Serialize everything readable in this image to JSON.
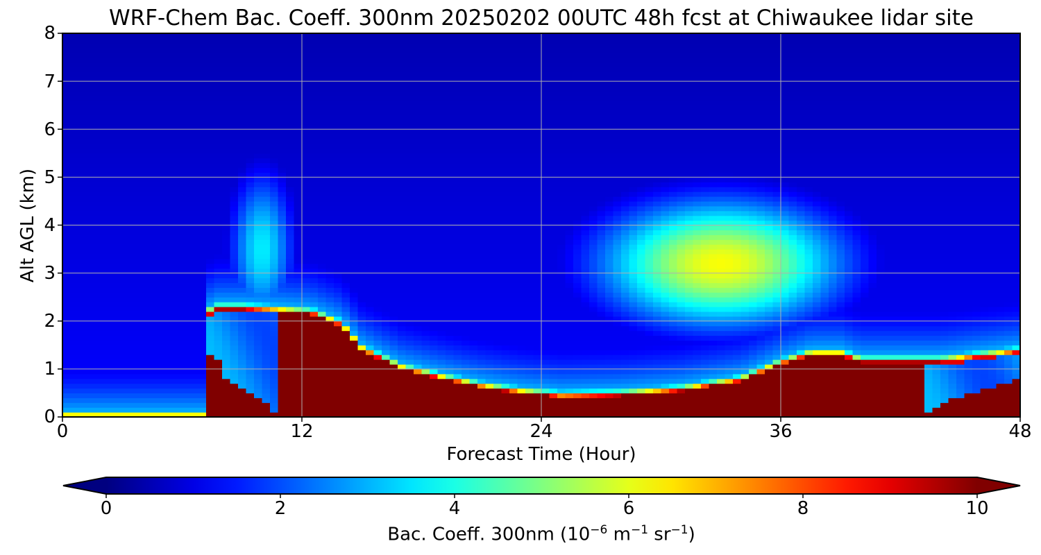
{
  "chart_data": {
    "type": "heatmap",
    "title": "WRF-Chem Bac. Coeff. 300nm  20250202 00UTC 48h fcst at Chiwaukee lidar site",
    "xlabel": "Forecast Time (Hour)",
    "ylabel": "Alt AGL (km)",
    "xlim": [
      0,
      48
    ],
    "ylim": [
      0,
      8
    ],
    "xticks": [
      "0",
      "12",
      "24",
      "36",
      "48"
    ],
    "yticks": [
      "0",
      "1",
      "2",
      "3",
      "4",
      "5",
      "6",
      "7",
      "8"
    ],
    "grid": true,
    "colormap": "jet",
    "colorbar": {
      "orientation": "horizontal",
      "extend": "both",
      "range": [
        0,
        10
      ],
      "ticks": [
        "0",
        "2",
        "4",
        "6",
        "8",
        "10"
      ],
      "label_main": "Bac. Coeff. 300nm  (10",
      "label_exp1": "−6",
      "label_mid": " m",
      "label_exp2": "−1",
      "label_mid2": " sr",
      "label_exp3": "−1",
      "label_end": ")"
    },
    "layers": {
      "background_value": 1.3,
      "top_value": 0.5,
      "surface_plume": {
        "value": 10,
        "top_height_km": [
          [
            0,
            0
          ],
          [
            7.1,
            0
          ],
          [
            7.2,
            2.1
          ],
          [
            7.6,
            2.25
          ],
          [
            9,
            2.25
          ],
          [
            11,
            2.2
          ],
          [
            12.5,
            2.15
          ],
          [
            14,
            1.9
          ],
          [
            15,
            1.4
          ],
          [
            17,
            1.0
          ],
          [
            19,
            0.8
          ],
          [
            21,
            0.62
          ],
          [
            23,
            0.5
          ],
          [
            25,
            0.42
          ],
          [
            28,
            0.45
          ],
          [
            31,
            0.55
          ],
          [
            34,
            0.75
          ],
          [
            36,
            1.1
          ],
          [
            37.5,
            1.3
          ],
          [
            39,
            1.3
          ],
          [
            40,
            1.15
          ],
          [
            42,
            1.15
          ],
          [
            44,
            1.15
          ],
          [
            46,
            1.25
          ],
          [
            48,
            1.35
          ]
        ],
        "gap_hours": [
          11,
          43
        ],
        "gap_top_height_km": [
          [
            0,
            0
          ],
          [
            7,
            0
          ],
          [
            7.5,
            1.6
          ],
          [
            8,
            0.9
          ],
          [
            9.5,
            0.5
          ],
          [
            11,
            0
          ],
          [
            43,
            0
          ],
          [
            44,
            0.3
          ],
          [
            46,
            0.55
          ],
          [
            48,
            0.8
          ]
        ]
      },
      "mid_level_aerosol": {
        "peak_value": 6.2,
        "center_hour": 33,
        "center_height_km": 3.2,
        "range_hours": [
          29,
          43
        ],
        "range_height_km": [
          1.5,
          5.0
        ]
      },
      "early_column": {
        "peak_value": 3.6,
        "center_hour": 10,
        "range_height_km": [
          2.2,
          5.0
        ]
      }
    }
  }
}
